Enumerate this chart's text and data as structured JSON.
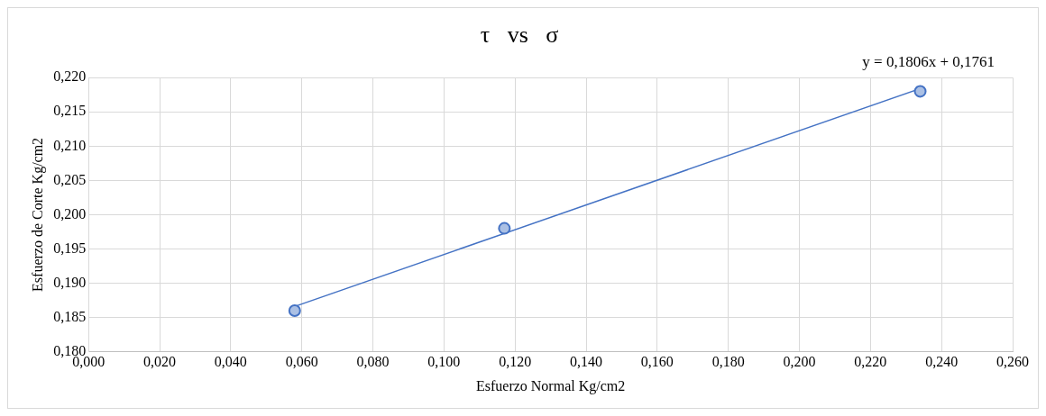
{
  "chart_data": {
    "type": "scatter",
    "title": "τ   vs   σ",
    "xlabel": "Esfuerzo Normal Kg/cm2",
    "ylabel": "Esfuerzo de Corte Kg/cm2",
    "x": [
      0.058,
      0.117,
      0.234
    ],
    "series": [
      {
        "color": "#4472c4",
        "values": [
          0.186,
          0.198,
          0.218
        ],
        "marker": "circle"
      },
      {
        "type": "line",
        "color": "#4472c4",
        "x": [
          0.058,
          0.234
        ],
        "values": [
          0.1866,
          0.2184
        ],
        "marker": "none",
        "line_style": "solid"
      }
    ],
    "xlim": [
      0,
      0.26
    ],
    "xticks": [
      {
        "value": 0,
        "label": "0,000"
      },
      {
        "value": 0.02,
        "label": "0,020"
      },
      {
        "value": 0.04,
        "label": "0,040"
      },
      {
        "value": 0.06,
        "label": "0,060"
      },
      {
        "value": 0.08,
        "label": "0,080"
      },
      {
        "value": 0.1,
        "label": "0,100"
      },
      {
        "value": 0.12,
        "label": "0,120"
      },
      {
        "value": 0.14,
        "label": "0,140"
      },
      {
        "value": 0.16,
        "label": "0,160"
      },
      {
        "value": 0.18,
        "label": "0,180"
      },
      {
        "value": 0.2,
        "label": "0,200"
      },
      {
        "value": 0.22,
        "label": "0,220"
      },
      {
        "value": 0.24,
        "label": "0,240"
      },
      {
        "value": 0.26,
        "label": "0,260"
      }
    ],
    "ylim": [
      0.18,
      0.22
    ],
    "yticks": [
      {
        "value": 0.18,
        "label": "0,180"
      },
      {
        "value": 0.185,
        "label": "0,185"
      },
      {
        "value": 0.19,
        "label": "0,190"
      },
      {
        "value": 0.195,
        "label": "0,195"
      },
      {
        "value": 0.2,
        "label": "0,200"
      },
      {
        "value": 0.205,
        "label": "0,205"
      },
      {
        "value": 0.21,
        "label": "0,210"
      },
      {
        "value": 0.215,
        "label": "0,215"
      },
      {
        "value": 0.22,
        "label": "0,220"
      }
    ],
    "annotations": [
      "y = 0,1806x + 0,1761"
    ],
    "grid": true,
    "legend": false
  }
}
